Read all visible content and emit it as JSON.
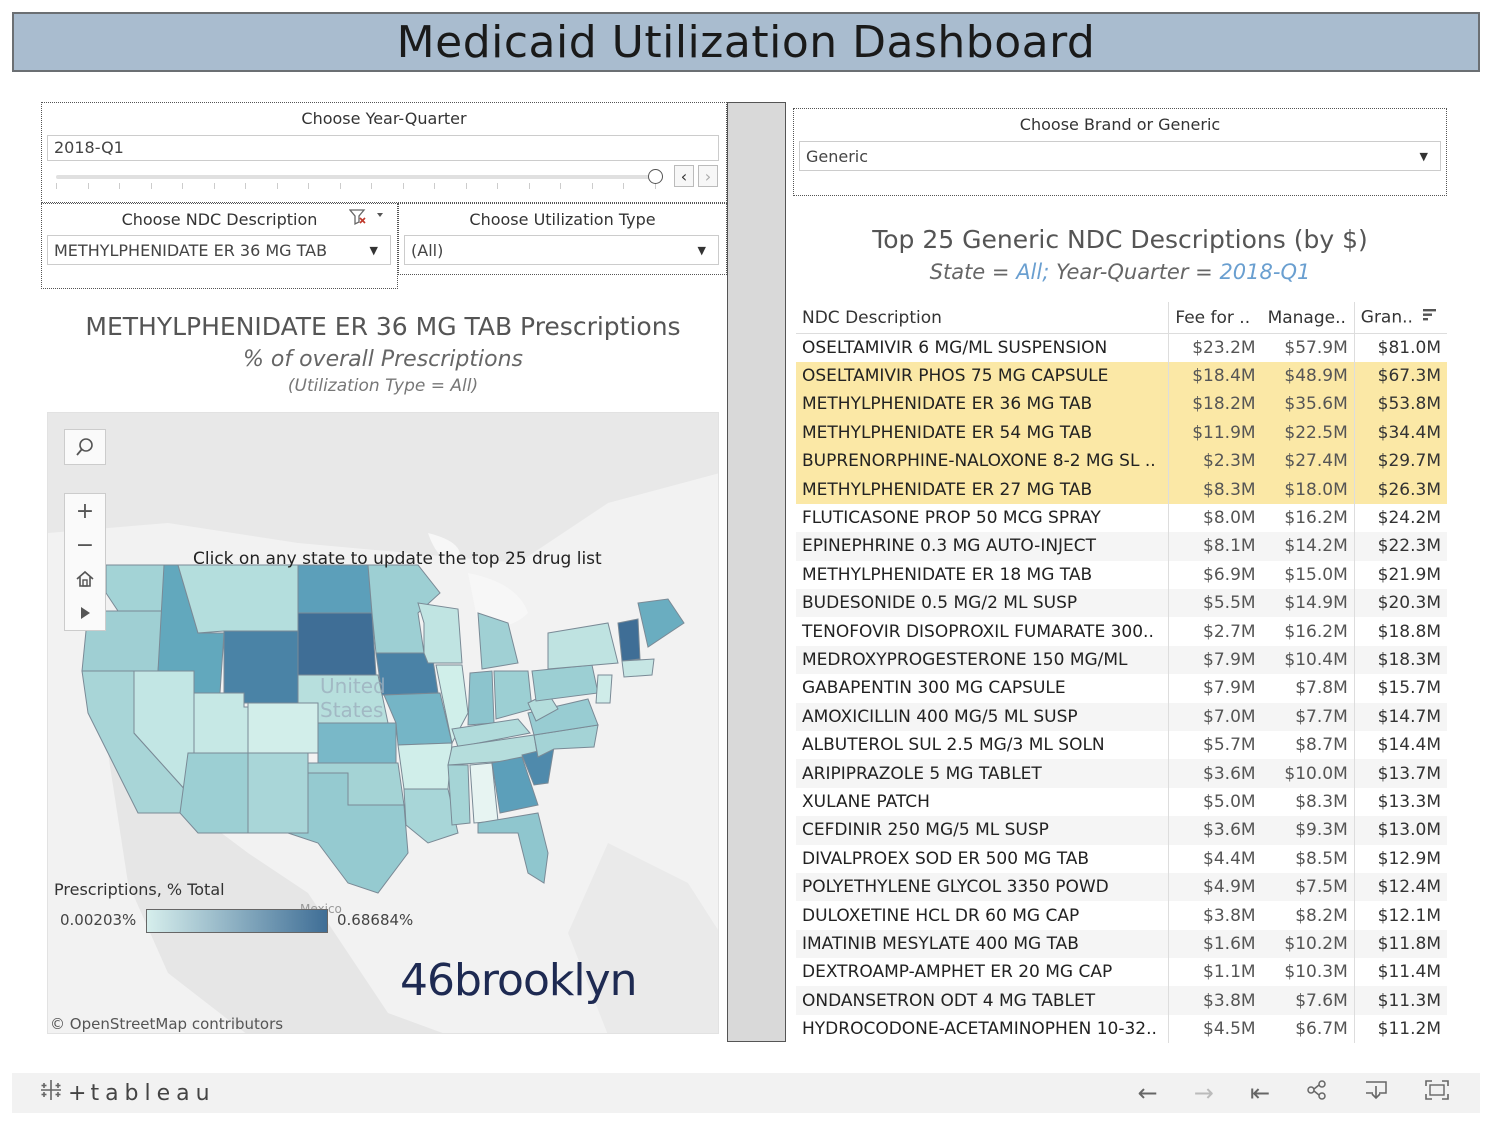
{
  "dashboard_title": "Medicaid Utilization Dashboard",
  "filters": {
    "year_quarter": {
      "label": "Choose Year-Quarter",
      "value": "2018-Q1"
    },
    "ndc_description": {
      "label": "Choose NDC Description",
      "value": "METHYLPHENIDATE ER 36 MG TAB"
    },
    "utilization_type": {
      "label": "Choose Utilization Type",
      "value": "(All)"
    },
    "brand_generic": {
      "label": "Choose Brand or Generic",
      "value": "Generic"
    }
  },
  "map_panel": {
    "title": "METHYLPHENIDATE ER 36 MG TAB Prescriptions",
    "subtitle": "% of overall Prescriptions",
    "subtitle2": "(Utilization Type = All)",
    "instruction": "Click on any state to update the top 25 drug list",
    "country_label_1": "United",
    "country_label_2": "States",
    "mexico_label": "Mexico",
    "legend_title": "Prescriptions, % Total",
    "legend_min": "0.00203%",
    "legend_max": "0.68684%",
    "legend_colors": [
      "#d6eeec",
      "#3f6e96"
    ],
    "brand_logo": "46brooklyn",
    "attribution": "© OpenStreetMap contributors"
  },
  "table_panel": {
    "title": "Top 25 Generic NDC Descriptions (by $)",
    "subtitle_prefix_state": "State = ",
    "subtitle_state": "All;",
    "subtitle_prefix_yq": " Year-Quarter = ",
    "subtitle_yq": "2018-Q1",
    "columns": [
      "NDC Description",
      "Fee for ..",
      "Manage..",
      "Gran.."
    ],
    "rows": [
      {
        "name": "OSELTAMIVIR 6 MG/ML SUSPENSION",
        "ffs": "$23.2M",
        "mgd": "$57.9M",
        "grand": "$81.0M",
        "hl": false
      },
      {
        "name": "OSELTAMIVIR PHOS 75 MG CAPSULE",
        "ffs": "$18.4M",
        "mgd": "$48.9M",
        "grand": "$67.3M",
        "hl": true
      },
      {
        "name": "METHYLPHENIDATE ER 36 MG TAB",
        "ffs": "$18.2M",
        "mgd": "$35.6M",
        "grand": "$53.8M",
        "hl": true
      },
      {
        "name": "METHYLPHENIDATE ER 54 MG TAB",
        "ffs": "$11.9M",
        "mgd": "$22.5M",
        "grand": "$34.4M",
        "hl": true
      },
      {
        "name": "BUPRENORPHINE-NALOXONE 8-2 MG SL ..",
        "ffs": "$2.3M",
        "mgd": "$27.4M",
        "grand": "$29.7M",
        "hl": true
      },
      {
        "name": "METHYLPHENIDATE ER 27 MG TAB",
        "ffs": "$8.3M",
        "mgd": "$18.0M",
        "grand": "$26.3M",
        "hl": true
      },
      {
        "name": "FLUTICASONE PROP 50 MCG SPRAY",
        "ffs": "$8.0M",
        "mgd": "$16.2M",
        "grand": "$24.2M",
        "hl": false
      },
      {
        "name": "EPINEPHRINE 0.3 MG AUTO-INJECT",
        "ffs": "$8.1M",
        "mgd": "$14.2M",
        "grand": "$22.3M",
        "hl": false
      },
      {
        "name": "METHYLPHENIDATE ER 18 MG TAB",
        "ffs": "$6.9M",
        "mgd": "$15.0M",
        "grand": "$21.9M",
        "hl": false
      },
      {
        "name": "BUDESONIDE 0.5 MG/2 ML SUSP",
        "ffs": "$5.5M",
        "mgd": "$14.9M",
        "grand": "$20.3M",
        "hl": false
      },
      {
        "name": "TENOFOVIR DISOPROXIL FUMARATE 300..",
        "ffs": "$2.7M",
        "mgd": "$16.2M",
        "grand": "$18.8M",
        "hl": false
      },
      {
        "name": "MEDROXYPROGESTERONE 150 MG/ML",
        "ffs": "$7.9M",
        "mgd": "$10.4M",
        "grand": "$18.3M",
        "hl": false
      },
      {
        "name": "GABAPENTIN 300 MG CAPSULE",
        "ffs": "$7.9M",
        "mgd": "$7.8M",
        "grand": "$15.7M",
        "hl": false
      },
      {
        "name": "AMOXICILLIN 400 MG/5 ML SUSP",
        "ffs": "$7.0M",
        "mgd": "$7.7M",
        "grand": "$14.7M",
        "hl": false
      },
      {
        "name": "ALBUTEROL SUL 2.5 MG/3 ML SOLN",
        "ffs": "$5.7M",
        "mgd": "$8.7M",
        "grand": "$14.4M",
        "hl": false
      },
      {
        "name": "ARIPIPRAZOLE 5 MG TABLET",
        "ffs": "$3.6M",
        "mgd": "$10.0M",
        "grand": "$13.7M",
        "hl": false
      },
      {
        "name": "XULANE PATCH",
        "ffs": "$5.0M",
        "mgd": "$8.3M",
        "grand": "$13.3M",
        "hl": false
      },
      {
        "name": "CEFDINIR 250 MG/5 ML SUSP",
        "ffs": "$3.6M",
        "mgd": "$9.3M",
        "grand": "$13.0M",
        "hl": false
      },
      {
        "name": "DIVALPROEX SOD ER 500 MG TAB",
        "ffs": "$4.4M",
        "mgd": "$8.5M",
        "grand": "$12.9M",
        "hl": false
      },
      {
        "name": "POLYETHYLENE GLYCOL 3350 POWD",
        "ffs": "$4.9M",
        "mgd": "$7.5M",
        "grand": "$12.4M",
        "hl": false
      },
      {
        "name": "DULOXETINE HCL DR 60 MG CAP",
        "ffs": "$3.8M",
        "mgd": "$8.2M",
        "grand": "$12.1M",
        "hl": false
      },
      {
        "name": "IMATINIB MESYLATE 400 MG TAB",
        "ffs": "$1.6M",
        "mgd": "$10.2M",
        "grand": "$11.8M",
        "hl": false
      },
      {
        "name": "DEXTROAMP-AMPHET ER 20 MG CAP",
        "ffs": "$1.1M",
        "mgd": "$10.3M",
        "grand": "$11.4M",
        "hl": false
      },
      {
        "name": "ONDANSETRON ODT 4 MG TABLET",
        "ffs": "$3.8M",
        "mgd": "$7.6M",
        "grand": "$11.3M",
        "hl": false
      },
      {
        "name": "HYDROCODONE-ACETAMINOPHEN 10-32..",
        "ffs": "$4.5M",
        "mgd": "$6.7M",
        "grand": "$11.2M",
        "hl": false
      }
    ]
  },
  "footer": {
    "logo_text": "tableau",
    "icons": [
      "undo-icon",
      "redo-icon",
      "revert-icon",
      "share-icon",
      "download-icon",
      "fullscreen-icon"
    ]
  }
}
